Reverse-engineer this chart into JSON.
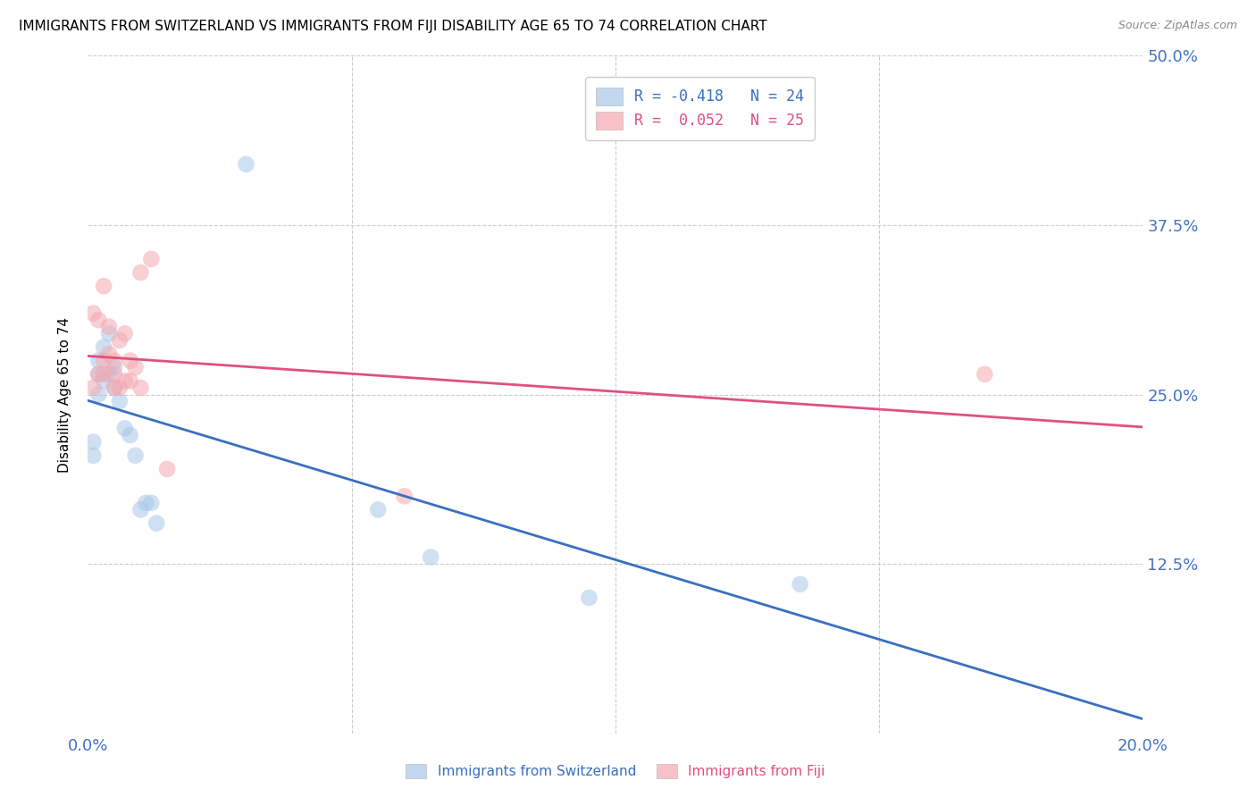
{
  "title": "IMMIGRANTS FROM SWITZERLAND VS IMMIGRANTS FROM FIJI DISABILITY AGE 65 TO 74 CORRELATION CHART",
  "source": "Source: ZipAtlas.com",
  "ylabel": "Disability Age 65 to 74",
  "xlim": [
    0.0,
    0.2
  ],
  "ylim": [
    0.0,
    0.5
  ],
  "xticks": [
    0.0,
    0.05,
    0.1,
    0.15,
    0.2
  ],
  "yticks": [
    0.0,
    0.125,
    0.25,
    0.375,
    0.5
  ],
  "xticklabels": [
    "0.0%",
    "",
    "",
    "",
    "20.0%"
  ],
  "yticklabels": [
    "",
    "12.5%",
    "25.0%",
    "37.5%",
    "50.0%"
  ],
  "legend_sw_label": "R = -0.418   N = 24",
  "legend_fj_label": "R =  0.052   N = 25",
  "switzerland_x": [
    0.001,
    0.001,
    0.002,
    0.002,
    0.002,
    0.003,
    0.003,
    0.004,
    0.004,
    0.005,
    0.005,
    0.006,
    0.007,
    0.008,
    0.009,
    0.01,
    0.011,
    0.012,
    0.013,
    0.03,
    0.055,
    0.065,
    0.095,
    0.135
  ],
  "switzerland_y": [
    0.205,
    0.215,
    0.25,
    0.265,
    0.275,
    0.26,
    0.285,
    0.265,
    0.295,
    0.27,
    0.255,
    0.245,
    0.225,
    0.22,
    0.205,
    0.165,
    0.17,
    0.17,
    0.155,
    0.42,
    0.165,
    0.13,
    0.1,
    0.11
  ],
  "fiji_x": [
    0.001,
    0.001,
    0.002,
    0.002,
    0.003,
    0.003,
    0.003,
    0.004,
    0.004,
    0.005,
    0.005,
    0.005,
    0.006,
    0.006,
    0.007,
    0.007,
    0.008,
    0.008,
    0.009,
    0.01,
    0.01,
    0.012,
    0.015,
    0.06,
    0.17
  ],
  "fiji_y": [
    0.255,
    0.31,
    0.265,
    0.305,
    0.265,
    0.275,
    0.33,
    0.28,
    0.3,
    0.255,
    0.265,
    0.275,
    0.255,
    0.29,
    0.26,
    0.295,
    0.26,
    0.275,
    0.27,
    0.255,
    0.34,
    0.35,
    0.195,
    0.175,
    0.265
  ],
  "switzerland_color": "#a8c8e8",
  "fiji_color": "#f4a8b0",
  "switzerland_line_color": "#3a6fbf",
  "fiji_line_color": "#e05080",
  "background_color": "#ffffff",
  "grid_color": "#cccccc",
  "title_fontsize": 11,
  "tick_fontsize": 13,
  "tick_label_color": "#4472c4",
  "ylabel_fontsize": 11,
  "source_fontsize": 9,
  "legend_fontsize": 12,
  "scatter_size": 180,
  "scatter_alpha": 0.55,
  "line_width": 2.0
}
